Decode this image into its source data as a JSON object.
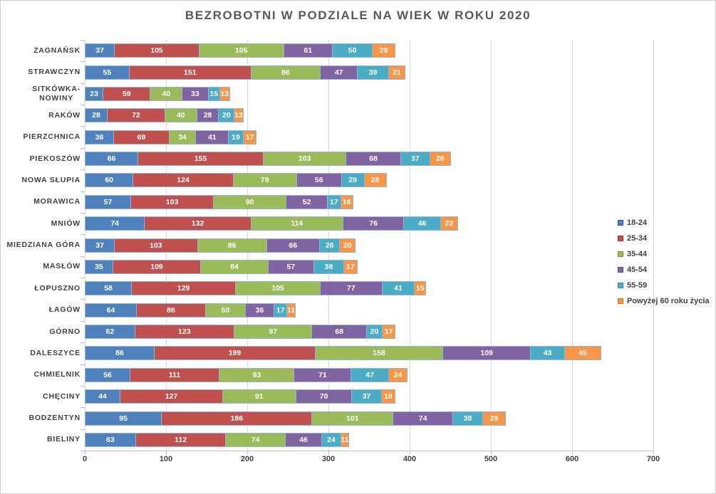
{
  "chart_data": {
    "type": "bar",
    "orientation": "horizontal",
    "stacked": true,
    "title": "BEZROBOTNI W PODZIALE NA WIEK W ROKU 2020",
    "categories": [
      "ZAGNAŃSK",
      "STRAWCZYN",
      "SITKÓWKA-\nNOWINY",
      "RAKÓW",
      "PIERZCHNICA",
      "PIEKOSZÓW",
      "NOWA SŁUPIA",
      "MORAWICA",
      "MNIÓW",
      "MIEDZIANA GÓRA",
      "MASŁÓW",
      "ŁOPUSZNO",
      "ŁAGÓW",
      "GÓRNO",
      "DALESZYCE",
      "CHMIELNIK",
      "CHĘCINY",
      "BODZENTYN",
      "BIELINY"
    ],
    "series": [
      {
        "name": "18-24",
        "color": "#4F81BD",
        "swatch_border": "#2E5B8F",
        "values": [
          37,
          55,
          23,
          28,
          36,
          66,
          60,
          57,
          74,
          37,
          35,
          58,
          64,
          62,
          86,
          56,
          44,
          95,
          63
        ]
      },
      {
        "name": "25-34",
        "color": "#C0504D",
        "swatch_border": "#953735",
        "values": [
          105,
          151,
          59,
          72,
          69,
          155,
          124,
          103,
          132,
          103,
          109,
          129,
          86,
          123,
          199,
          111,
          127,
          186,
          112
        ]
      },
      {
        "name": "35-44",
        "color": "#9BBB59",
        "swatch_border": "#76923C",
        "values": [
          105,
          86,
          40,
          40,
          34,
          103,
          79,
          90,
          114,
          86,
          84,
          105,
          50,
          97,
          158,
          93,
          91,
          101,
          74
        ]
      },
      {
        "name": "45-54",
        "color": "#8064A2",
        "swatch_border": "#5F497A",
        "values": [
          61,
          47,
          33,
          28,
          41,
          68,
          56,
          52,
          76,
          66,
          57,
          77,
          36,
          68,
          109,
          71,
          70,
          74,
          46
        ]
      },
      {
        "name": "55-59",
        "color": "#4BACC6",
        "swatch_border": "#31849B",
        "values": [
          50,
          39,
          15,
          20,
          19,
          37,
          29,
          17,
          46,
          26,
          38,
          41,
          17,
          20,
          43,
          47,
          37,
          38,
          24
        ]
      },
      {
        "name": "Powyżej 60 roku życia",
        "color": "#F79646",
        "swatch_border": "#E36C09",
        "values": [
          29,
          21,
          13,
          12,
          17,
          26,
          28,
          16,
          22,
          20,
          17,
          15,
          11,
          17,
          45,
          24,
          18,
          29,
          11
        ]
      }
    ],
    "x_axis": {
      "min": 0,
      "max": 700,
      "ticks": [
        0,
        100,
        200,
        300,
        400,
        500,
        600,
        700
      ]
    },
    "legend_position": "right",
    "grid": true,
    "colors": {
      "title": "#595959",
      "axis_text": "#404040",
      "gridline": "#D9D9D9",
      "axis_line": "#BFBFBF",
      "bar_border": "#95B3D7",
      "segment_label": "#FFFFFF",
      "canvas_border": "#CFCFCF"
    }
  }
}
